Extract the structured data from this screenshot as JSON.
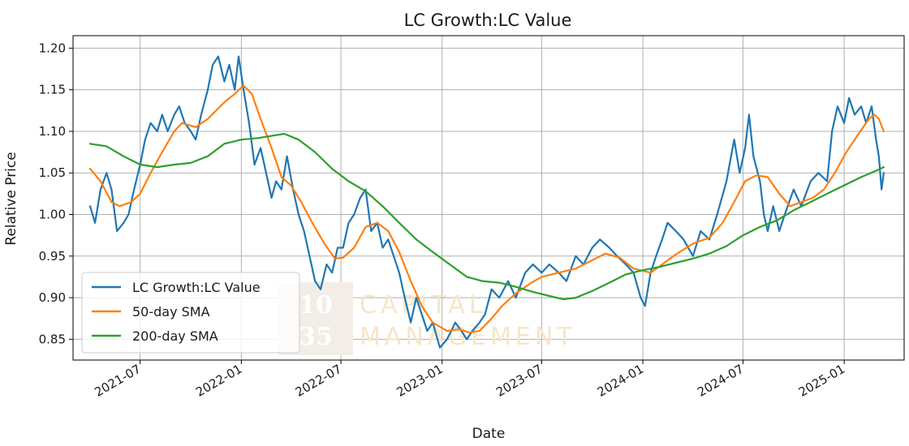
{
  "chart_data": {
    "type": "line",
    "title": "LC Growth:LC Value",
    "xlabel": "Date",
    "ylabel": "Relative Price",
    "ylim": [
      0.825,
      1.215
    ],
    "xlim": [
      "2021-03-01",
      "2025-04-20"
    ],
    "yticks": [
      "0.85",
      "0.90",
      "0.95",
      "1.00",
      "1.05",
      "1.10",
      "1.15",
      "1.20"
    ],
    "xticks": [
      "2021-07",
      "2022-01",
      "2022-07",
      "2023-01",
      "2023-07",
      "2024-01",
      "2024-07",
      "2025-01"
    ],
    "grid": true,
    "legend": "lower-left",
    "watermark": {
      "numbers": [
        "10",
        "35"
      ],
      "words": [
        "CAPITAL",
        "MANAGEMENT"
      ]
    },
    "series": [
      {
        "name": "LC Growth:LC Value",
        "color": "#1f77b4",
        "points": [
          [
            "2021-04-01",
            1.01
          ],
          [
            "2021-04-10",
            0.99
          ],
          [
            "2021-04-20",
            1.03
          ],
          [
            "2021-05-01",
            1.05
          ],
          [
            "2021-05-10",
            1.03
          ],
          [
            "2021-05-20",
            0.98
          ],
          [
            "2021-06-01",
            0.99
          ],
          [
            "2021-06-10",
            1.0
          ],
          [
            "2021-06-20",
            1.03
          ],
          [
            "2021-07-01",
            1.06
          ],
          [
            "2021-07-10",
            1.09
          ],
          [
            "2021-07-20",
            1.11
          ],
          [
            "2021-08-01",
            1.1
          ],
          [
            "2021-08-10",
            1.12
          ],
          [
            "2021-08-20",
            1.1
          ],
          [
            "2021-09-01",
            1.12
          ],
          [
            "2021-09-10",
            1.13
          ],
          [
            "2021-09-20",
            1.11
          ],
          [
            "2021-10-01",
            1.1
          ],
          [
            "2021-10-10",
            1.09
          ],
          [
            "2021-10-20",
            1.12
          ],
          [
            "2021-11-01",
            1.15
          ],
          [
            "2021-11-10",
            1.18
          ],
          [
            "2021-11-20",
            1.19
          ],
          [
            "2021-12-01",
            1.16
          ],
          [
            "2021-12-10",
            1.18
          ],
          [
            "2021-12-20",
            1.15
          ],
          [
            "2021-12-27",
            1.19
          ],
          [
            "2022-01-05",
            1.15
          ],
          [
            "2022-01-15",
            1.11
          ],
          [
            "2022-01-25",
            1.06
          ],
          [
            "2022-02-05",
            1.08
          ],
          [
            "2022-02-15",
            1.05
          ],
          [
            "2022-02-25",
            1.02
          ],
          [
            "2022-03-05",
            1.04
          ],
          [
            "2022-03-15",
            1.03
          ],
          [
            "2022-03-25",
            1.07
          ],
          [
            "2022-04-05",
            1.03
          ],
          [
            "2022-04-15",
            1.0
          ],
          [
            "2022-04-25",
            0.98
          ],
          [
            "2022-05-05",
            0.95
          ],
          [
            "2022-05-15",
            0.92
          ],
          [
            "2022-05-25",
            0.91
          ],
          [
            "2022-06-05",
            0.94
          ],
          [
            "2022-06-15",
            0.93
          ],
          [
            "2022-06-25",
            0.96
          ],
          [
            "2022-07-05",
            0.96
          ],
          [
            "2022-07-15",
            0.99
          ],
          [
            "2022-07-25",
            1.0
          ],
          [
            "2022-08-05",
            1.02
          ],
          [
            "2022-08-15",
            1.03
          ],
          [
            "2022-08-25",
            0.98
          ],
          [
            "2022-09-05",
            0.99
          ],
          [
            "2022-09-15",
            0.96
          ],
          [
            "2022-09-25",
            0.97
          ],
          [
            "2022-10-05",
            0.95
          ],
          [
            "2022-10-15",
            0.93
          ],
          [
            "2022-10-25",
            0.9
          ],
          [
            "2022-11-05",
            0.87
          ],
          [
            "2022-11-15",
            0.9
          ],
          [
            "2022-11-25",
            0.88
          ],
          [
            "2022-12-05",
            0.86
          ],
          [
            "2022-12-15",
            0.87
          ],
          [
            "2022-12-28",
            0.84
          ],
          [
            "2023-01-10",
            0.85
          ],
          [
            "2023-01-25",
            0.87
          ],
          [
            "2023-02-05",
            0.86
          ],
          [
            "2023-02-15",
            0.85
          ],
          [
            "2023-02-25",
            0.86
          ],
          [
            "2023-03-10",
            0.87
          ],
          [
            "2023-03-20",
            0.88
          ],
          [
            "2023-04-01",
            0.91
          ],
          [
            "2023-04-15",
            0.9
          ],
          [
            "2023-05-01",
            0.92
          ],
          [
            "2023-05-15",
            0.9
          ],
          [
            "2023-06-01",
            0.93
          ],
          [
            "2023-06-15",
            0.94
          ],
          [
            "2023-07-01",
            0.93
          ],
          [
            "2023-07-15",
            0.94
          ],
          [
            "2023-08-01",
            0.93
          ],
          [
            "2023-08-15",
            0.92
          ],
          [
            "2023-09-01",
            0.95
          ],
          [
            "2023-09-15",
            0.94
          ],
          [
            "2023-10-01",
            0.96
          ],
          [
            "2023-10-15",
            0.97
          ],
          [
            "2023-11-01",
            0.96
          ],
          [
            "2023-11-15",
            0.95
          ],
          [
            "2023-12-01",
            0.94
          ],
          [
            "2023-12-15",
            0.93
          ],
          [
            "2023-12-28",
            0.9
          ],
          [
            "2024-01-05",
            0.89
          ],
          [
            "2024-01-15",
            0.93
          ],
          [
            "2024-01-25",
            0.95
          ],
          [
            "2024-02-05",
            0.97
          ],
          [
            "2024-02-15",
            0.99
          ],
          [
            "2024-03-01",
            0.98
          ],
          [
            "2024-03-15",
            0.97
          ],
          [
            "2024-04-01",
            0.95
          ],
          [
            "2024-04-15",
            0.98
          ],
          [
            "2024-05-01",
            0.97
          ],
          [
            "2024-05-15",
            1.0
          ],
          [
            "2024-06-01",
            1.04
          ],
          [
            "2024-06-15",
            1.09
          ],
          [
            "2024-06-25",
            1.05
          ],
          [
            "2024-07-05",
            1.08
          ],
          [
            "2024-07-12",
            1.12
          ],
          [
            "2024-07-20",
            1.07
          ],
          [
            "2024-08-01",
            1.04
          ],
          [
            "2024-08-08",
            1.0
          ],
          [
            "2024-08-15",
            0.98
          ],
          [
            "2024-08-25",
            1.01
          ],
          [
            "2024-09-05",
            0.98
          ],
          [
            "2024-09-15",
            1.0
          ],
          [
            "2024-10-01",
            1.03
          ],
          [
            "2024-10-15",
            1.01
          ],
          [
            "2024-11-01",
            1.04
          ],
          [
            "2024-11-15",
            1.05
          ],
          [
            "2024-12-01",
            1.04
          ],
          [
            "2024-12-10",
            1.1
          ],
          [
            "2024-12-20",
            1.13
          ],
          [
            "2025-01-01",
            1.11
          ],
          [
            "2025-01-10",
            1.14
          ],
          [
            "2025-01-20",
            1.12
          ],
          [
            "2025-02-01",
            1.13
          ],
          [
            "2025-02-10",
            1.11
          ],
          [
            "2025-02-20",
            1.13
          ],
          [
            "2025-02-28",
            1.09
          ],
          [
            "2025-03-05",
            1.07
          ],
          [
            "2025-03-10",
            1.03
          ],
          [
            "2025-03-14",
            1.05
          ]
        ]
      },
      {
        "name": "50-day SMA",
        "color": "#ff7f0e",
        "points": [
          [
            "2021-04-01",
            1.055
          ],
          [
            "2021-04-20",
            1.04
          ],
          [
            "2021-05-10",
            1.015
          ],
          [
            "2021-05-25",
            1.01
          ],
          [
            "2021-06-15",
            1.015
          ],
          [
            "2021-07-01",
            1.025
          ],
          [
            "2021-07-20",
            1.05
          ],
          [
            "2021-08-10",
            1.075
          ],
          [
            "2021-09-01",
            1.1
          ],
          [
            "2021-09-15",
            1.11
          ],
          [
            "2021-10-10",
            1.105
          ],
          [
            "2021-11-01",
            1.115
          ],
          [
            "2021-12-01",
            1.135
          ],
          [
            "2021-12-20",
            1.145
          ],
          [
            "2022-01-05",
            1.155
          ],
          [
            "2022-01-20",
            1.145
          ],
          [
            "2022-02-05",
            1.115
          ],
          [
            "2022-02-25",
            1.08
          ],
          [
            "2022-03-15",
            1.045
          ],
          [
            "2022-04-01",
            1.035
          ],
          [
            "2022-04-20",
            1.015
          ],
          [
            "2022-05-10",
            0.99
          ],
          [
            "2022-06-01",
            0.965
          ],
          [
            "2022-06-20",
            0.947
          ],
          [
            "2022-07-05",
            0.948
          ],
          [
            "2022-07-25",
            0.96
          ],
          [
            "2022-08-15",
            0.985
          ],
          [
            "2022-09-05",
            0.99
          ],
          [
            "2022-09-25",
            0.98
          ],
          [
            "2022-10-15",
            0.955
          ],
          [
            "2022-11-05",
            0.92
          ],
          [
            "2022-11-25",
            0.89
          ],
          [
            "2022-12-15",
            0.87
          ],
          [
            "2023-01-10",
            0.86
          ],
          [
            "2023-02-01",
            0.862
          ],
          [
            "2023-02-20",
            0.858
          ],
          [
            "2023-03-10",
            0.86
          ],
          [
            "2023-04-01",
            0.875
          ],
          [
            "2023-04-20",
            0.89
          ],
          [
            "2023-05-15",
            0.905
          ],
          [
            "2023-06-10",
            0.917
          ],
          [
            "2023-07-01",
            0.925
          ],
          [
            "2023-08-01",
            0.93
          ],
          [
            "2023-09-01",
            0.935
          ],
          [
            "2023-10-01",
            0.945
          ],
          [
            "2023-10-25",
            0.953
          ],
          [
            "2023-11-20",
            0.948
          ],
          [
            "2023-12-15",
            0.935
          ],
          [
            "2024-01-15",
            0.93
          ],
          [
            "2024-02-05",
            0.94
          ],
          [
            "2024-03-01",
            0.952
          ],
          [
            "2024-04-01",
            0.965
          ],
          [
            "2024-05-01",
            0.972
          ],
          [
            "2024-05-25",
            0.99
          ],
          [
            "2024-06-15",
            1.015
          ],
          [
            "2024-07-05",
            1.04
          ],
          [
            "2024-07-25",
            1.047
          ],
          [
            "2024-08-15",
            1.045
          ],
          [
            "2024-09-05",
            1.025
          ],
          [
            "2024-09-25",
            1.01
          ],
          [
            "2024-10-15",
            1.015
          ],
          [
            "2024-11-05",
            1.02
          ],
          [
            "2024-11-25",
            1.03
          ],
          [
            "2024-12-15",
            1.05
          ],
          [
            "2025-01-05",
            1.075
          ],
          [
            "2025-01-25",
            1.095
          ],
          [
            "2025-02-15",
            1.115
          ],
          [
            "2025-02-25",
            1.12
          ],
          [
            "2025-03-05",
            1.115
          ],
          [
            "2025-03-14",
            1.1
          ]
        ]
      },
      {
        "name": "200-day SMA",
        "color": "#2ca02c",
        "points": [
          [
            "2021-04-01",
            1.085
          ],
          [
            "2021-05-01",
            1.082
          ],
          [
            "2021-06-01",
            1.07
          ],
          [
            "2021-07-01",
            1.06
          ],
          [
            "2021-08-01",
            1.057
          ],
          [
            "2021-09-01",
            1.06
          ],
          [
            "2021-10-01",
            1.062
          ],
          [
            "2021-11-01",
            1.07
          ],
          [
            "2021-12-01",
            1.085
          ],
          [
            "2022-01-01",
            1.09
          ],
          [
            "2022-02-01",
            1.092
          ],
          [
            "2022-03-01",
            1.095
          ],
          [
            "2022-03-20",
            1.097
          ],
          [
            "2022-04-15",
            1.09
          ],
          [
            "2022-05-15",
            1.075
          ],
          [
            "2022-06-15",
            1.055
          ],
          [
            "2022-07-15",
            1.04
          ],
          [
            "2022-08-15",
            1.028
          ],
          [
            "2022-09-15",
            1.01
          ],
          [
            "2022-10-15",
            0.99
          ],
          [
            "2022-11-15",
            0.97
          ],
          [
            "2022-12-15",
            0.955
          ],
          [
            "2023-01-15",
            0.94
          ],
          [
            "2023-02-15",
            0.925
          ],
          [
            "2023-03-15",
            0.92
          ],
          [
            "2023-04-15",
            0.918
          ],
          [
            "2023-05-15",
            0.913
          ],
          [
            "2023-06-15",
            0.907
          ],
          [
            "2023-07-15",
            0.902
          ],
          [
            "2023-08-10",
            0.898
          ],
          [
            "2023-09-01",
            0.9
          ],
          [
            "2023-10-01",
            0.908
          ],
          [
            "2023-11-01",
            0.918
          ],
          [
            "2023-12-01",
            0.928
          ],
          [
            "2024-01-01",
            0.933
          ],
          [
            "2024-02-01",
            0.937
          ],
          [
            "2024-03-01",
            0.942
          ],
          [
            "2024-04-01",
            0.947
          ],
          [
            "2024-05-01",
            0.953
          ],
          [
            "2024-06-01",
            0.962
          ],
          [
            "2024-07-01",
            0.975
          ],
          [
            "2024-08-01",
            0.985
          ],
          [
            "2024-09-01",
            0.993
          ],
          [
            "2024-10-01",
            1.005
          ],
          [
            "2024-11-01",
            1.015
          ],
          [
            "2024-12-01",
            1.025
          ],
          [
            "2025-01-01",
            1.035
          ],
          [
            "2025-02-01",
            1.045
          ],
          [
            "2025-03-01",
            1.053
          ],
          [
            "2025-03-14",
            1.057
          ]
        ]
      }
    ]
  }
}
